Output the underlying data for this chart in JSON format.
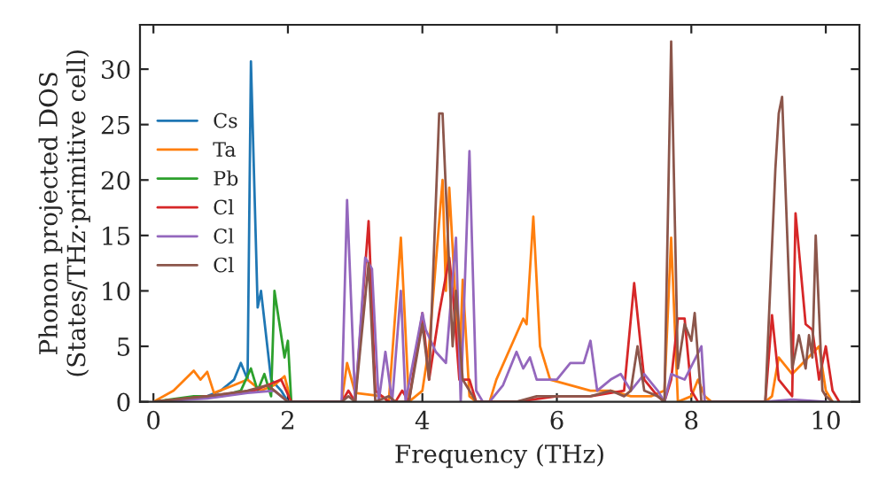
{
  "chart_data": {
    "type": "line",
    "xlabel": "Frequency (THz)",
    "ylabel": "Phonon projected DOS\n(States/THz·primitive cell)",
    "xlim": [
      -0.2,
      10.5
    ],
    "ylim": [
      0,
      34
    ],
    "xticks": [
      0,
      2,
      4,
      6,
      8,
      10
    ],
    "yticks": [
      0,
      5,
      10,
      15,
      20,
      25,
      30
    ],
    "legend": "left",
    "grid": false,
    "series": [
      {
        "name": "Cs",
        "color": "#1f77b4",
        "x": [
          0,
          0.8,
          1.0,
          1.2,
          1.3,
          1.4,
          1.45,
          1.55,
          1.6,
          1.75,
          1.9,
          2.0
        ],
        "values": [
          0,
          0.5,
          1,
          2,
          3.5,
          2,
          30.7,
          8.5,
          10,
          2,
          1,
          0
        ]
      },
      {
        "name": "Ta",
        "color": "#ff7f0e",
        "x": [
          0,
          0.3,
          0.6,
          0.7,
          0.8,
          0.9,
          1.2,
          1.4,
          1.6,
          1.8,
          1.95,
          2.05,
          2.8,
          2.88,
          3.0,
          3.4,
          3.5,
          3.68,
          3.8,
          4.0,
          4.1,
          4.3,
          4.35,
          4.4,
          4.55,
          4.6,
          4.7,
          4.8,
          5.0,
          5.1,
          5.5,
          5.55,
          5.65,
          5.75,
          5.9,
          6.2,
          6.5,
          6.8,
          7.1,
          7.4,
          7.6,
          7.7,
          7.8,
          8.0,
          8.1,
          8.2,
          8.3,
          9.1,
          9.2,
          9.3,
          9.5,
          9.9,
          10.0,
          10.1
        ],
        "values": [
          0,
          1,
          2.8,
          2,
          2.7,
          0.8,
          1.5,
          2,
          1,
          1.5,
          2.3,
          0,
          0,
          3.5,
          0.8,
          0.5,
          0,
          14.8,
          0,
          1,
          5,
          20,
          10,
          19.3,
          3,
          11,
          0.5,
          0,
          0,
          2,
          7.5,
          7,
          16.7,
          5,
          2,
          1.5,
          1,
          1,
          0.5,
          0.5,
          1,
          14.8,
          0,
          0.5,
          2,
          0.5,
          0,
          0,
          0.5,
          4,
          2.5,
          5,
          1,
          0
        ]
      },
      {
        "name": "Pb",
        "color": "#2ca02c",
        "x": [
          0,
          0.6,
          1.0,
          1.3,
          1.45,
          1.55,
          1.65,
          1.75,
          1.8,
          1.95,
          2.0,
          2.05
        ],
        "values": [
          0,
          0.5,
          0.5,
          1,
          3,
          1,
          2.5,
          0.5,
          10,
          4,
          5.5,
          0
        ]
      },
      {
        "name": "Cl",
        "color": "#d62728",
        "x": [
          0,
          0.8,
          1.5,
          1.9,
          2.05,
          2.8,
          2.9,
          3.0,
          3.2,
          3.3,
          3.5,
          3.6,
          3.7,
          3.8,
          4.0,
          4.1,
          4.25,
          4.4,
          4.45,
          4.55,
          4.7,
          4.8,
          5.4,
          6.0,
          6.5,
          7.0,
          7.15,
          7.3,
          7.5,
          7.6,
          7.7,
          7.8,
          7.9,
          8.0,
          8.1,
          9.1,
          9.2,
          9.3,
          9.5,
          9.55,
          9.7,
          9.8,
          9.9,
          10.0,
          10.1,
          10.2
        ],
        "values": [
          0,
          0.5,
          1,
          2,
          0,
          0,
          1,
          0,
          16.3,
          1,
          0,
          0,
          1,
          0,
          8,
          2,
          8,
          13,
          10,
          2,
          2,
          0,
          0,
          0.5,
          0.5,
          1,
          10.7,
          2,
          0.5,
          0,
          2,
          7.5,
          7.5,
          1,
          0,
          0,
          7.8,
          2,
          0.5,
          17,
          7,
          6.5,
          2,
          5,
          1,
          0
        ]
      },
      {
        "name": "Cl",
        "color": "#9467bd",
        "x": [
          0,
          0.8,
          1.4,
          1.8,
          2.0,
          2.8,
          2.88,
          3.0,
          3.15,
          3.25,
          3.35,
          3.45,
          3.55,
          3.68,
          3.75,
          4.0,
          4.05,
          4.2,
          4.35,
          4.5,
          4.57,
          4.7,
          4.8,
          4.9,
          5.0,
          5.2,
          5.4,
          5.5,
          5.6,
          5.7,
          6.0,
          6.2,
          6.4,
          6.5,
          6.6,
          6.8,
          6.95,
          7.1,
          7.3,
          7.5,
          7.6,
          7.7,
          7.9,
          8.15,
          8.2,
          9.1,
          9.5,
          10.0
        ],
        "values": [
          0,
          0.3,
          0.8,
          1,
          0,
          0,
          18.2,
          0,
          13,
          12,
          0,
          4.5,
          0,
          10,
          0,
          8,
          6.5,
          4.5,
          3.5,
          14.8,
          0,
          22.6,
          1,
          0,
          0,
          1.5,
          4.5,
          3,
          4,
          2,
          2,
          3.5,
          3.5,
          5.5,
          1,
          2,
          2.5,
          1,
          2.5,
          1,
          0,
          2.5,
          2,
          5,
          0,
          0,
          0.2,
          0
        ]
      },
      {
        "name": "Cl",
        "color": "#8c564b",
        "x": [
          0,
          0.8,
          1.4,
          1.7,
          2.0,
          2.8,
          2.9,
          3.0,
          3.2,
          3.3,
          3.5,
          3.6,
          3.8,
          4.0,
          4.1,
          4.25,
          4.3,
          4.45,
          4.5,
          4.6,
          4.8,
          5.4,
          5.7,
          6.5,
          6.8,
          7.0,
          7.1,
          7.2,
          7.3,
          7.5,
          7.6,
          7.7,
          7.8,
          7.9,
          8.0,
          8.05,
          8.15,
          9.1,
          9.25,
          9.3,
          9.35,
          9.5,
          9.6,
          9.7,
          9.75,
          9.8,
          9.85,
          9.95,
          10.0,
          10.1
        ],
        "values": [
          0,
          0.5,
          1,
          1.5,
          0,
          0,
          0.5,
          0,
          12.5,
          0,
          0.5,
          0,
          0,
          7,
          2,
          26,
          26,
          5,
          10,
          2,
          0,
          0,
          0.5,
          0.5,
          1,
          0.5,
          1,
          5,
          1,
          0.5,
          0,
          32.5,
          3,
          7,
          5.5,
          8,
          0,
          0,
          21,
          26,
          27.5,
          3,
          6,
          3,
          6,
          4,
          15,
          1,
          0.5,
          0
        ]
      }
    ]
  }
}
